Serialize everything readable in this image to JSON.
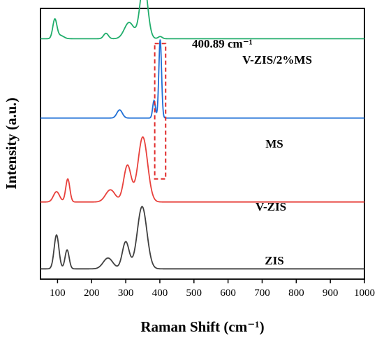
{
  "chart_data": {
    "type": "line",
    "xlabel": "Raman Shift (cm⁻¹)",
    "ylabel": "Intensity (a.u.)",
    "xlim": [
      50,
      1000
    ],
    "xticks": [
      100,
      200,
      300,
      400,
      500,
      600,
      700,
      800,
      900,
      1000
    ],
    "ylim": [
      0,
      1
    ],
    "yticks_shown": false,
    "annotation": {
      "text": "400.89 cm⁻¹",
      "x": 400.89,
      "box_x_range": [
        385,
        417
      ],
      "box_y_range": [
        0.37,
        0.87
      ],
      "style": "red-dashed-box"
    },
    "series": [
      {
        "name": "ZIS",
        "color": "#404040",
        "baseline": 0.038,
        "peaks": [
          {
            "x": 97,
            "h": 0.125,
            "w": 7
          },
          {
            "x": 128,
            "h": 0.07,
            "w": 6
          },
          {
            "x": 248,
            "h": 0.04,
            "w": 14
          },
          {
            "x": 300,
            "h": 0.1,
            "w": 10
          },
          {
            "x": 348,
            "h": 0.23,
            "w": 14
          }
        ]
      },
      {
        "name": "V-ZIS",
        "color": "#e8413c",
        "baseline": 0.285,
        "peaks": [
          {
            "x": 97,
            "h": 0.038,
            "w": 9
          },
          {
            "x": 130,
            "h": 0.085,
            "w": 6
          },
          {
            "x": 255,
            "h": 0.045,
            "w": 14
          },
          {
            "x": 305,
            "h": 0.135,
            "w": 11
          },
          {
            "x": 350,
            "h": 0.24,
            "w": 14
          }
        ]
      },
      {
        "name": "MS",
        "color": "#1f6fd6",
        "baseline": 0.595,
        "peaks": [
          {
            "x": 282,
            "h": 0.03,
            "w": 8
          },
          {
            "x": 383,
            "h": 0.065,
            "w": 4
          },
          {
            "x": 401,
            "h": 0.29,
            "w": 4
          }
        ]
      },
      {
        "name": "V-ZIS/2%MS",
        "color": "#20ad6b",
        "baseline": 0.888,
        "peaks": [
          {
            "x": 92,
            "h": 0.07,
            "w": 6
          },
          {
            "x": 108,
            "h": 0.012,
            "w": 10
          },
          {
            "x": 242,
            "h": 0.02,
            "w": 7
          },
          {
            "x": 310,
            "h": 0.06,
            "w": 14
          },
          {
            "x": 353,
            "h": 0.21,
            "w": 11
          },
          {
            "x": 401,
            "h": 0.008,
            "w": 6
          }
        ]
      }
    ]
  }
}
